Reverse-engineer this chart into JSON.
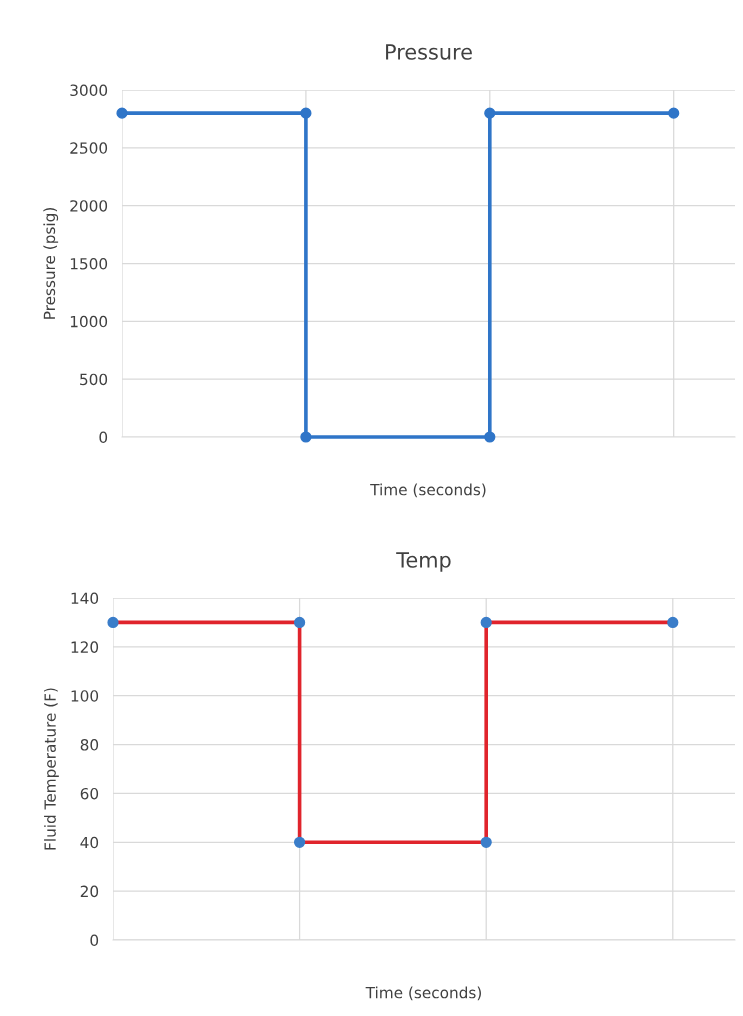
{
  "chart_data": [
    {
      "type": "step",
      "title": "Pressure",
      "xlabel": "Time (seconds)",
      "ylabel": "Pressure (psig)",
      "categories": [
        null,
        null,
        null,
        null
      ],
      "ylim": [
        0,
        3000
      ],
      "yticks": [
        0,
        500,
        1000,
        1500,
        2000,
        2500,
        3000
      ],
      "grid": true,
      "series": [
        {
          "color": "#2f75c8",
          "values": [
            2800,
            0,
            2800,
            2800
          ]
        },
        {
          "type": "scatter",
          "marker": "circle",
          "color": "#2f75c8",
          "values": [
            2800,
            2800,
            2800,
            2800
          ]
        },
        {
          "type": "scatter",
          "marker": "circle",
          "color": "#2f75c8",
          "values": [
            null,
            0,
            0,
            null
          ]
        }
      ]
    },
    {
      "type": "step",
      "title": "Temp",
      "xlabel": "Time (seconds)",
      "ylabel": "Fluid Temperature (F)",
      "categories": [
        null,
        null,
        null,
        null
      ],
      "ylim": [
        0,
        140
      ],
      "yticks": [
        0,
        20,
        40,
        60,
        80,
        100,
        120,
        140
      ],
      "grid": true,
      "series": [
        {
          "color": "#e0242c",
          "values": [
            130,
            40,
            130,
            130
          ]
        },
        {
          "type": "scatter",
          "marker": "circle",
          "color": "#3a7dc9",
          "values": [
            130,
            130,
            130,
            130
          ]
        },
        {
          "type": "scatter",
          "marker": "circle",
          "color": "#3a7dc9",
          "values": [
            null,
            40,
            40,
            null
          ]
        }
      ]
    }
  ]
}
